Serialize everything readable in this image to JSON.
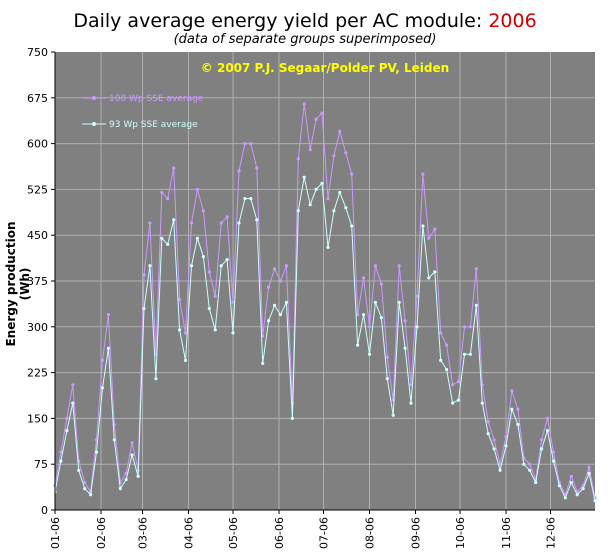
{
  "title": {
    "text": "Daily average energy yield per AC module: ",
    "year": "2006"
  },
  "subtitle": "(data of separate groups superimposed)",
  "copyright": "© 2007 P.J. Segaar/Polder PV, Leiden",
  "ylabel": "Energy production (Wh)",
  "colors": {
    "plot_bg": "#808080",
    "grid": "#b0b0b0",
    "series_108": "#cc99ff",
    "series_93": "#ccffff",
    "copyright": "#ffff00",
    "title_year": "#cc0000"
  },
  "chart_data": {
    "type": "line",
    "title": "Daily average energy yield per AC module: 2006",
    "subtitle": "(data of separate groups superimposed)",
    "xlabel": "",
    "ylabel": "Energy production (Wh)",
    "ylim": [
      0,
      750
    ],
    "yticks": [
      0,
      75,
      150,
      225,
      300,
      375,
      450,
      525,
      600,
      675,
      750
    ],
    "xlim": [
      1,
      365
    ],
    "xticks": [
      {
        "day": 1,
        "label": "01-06"
      },
      {
        "day": 32,
        "label": "02-06"
      },
      {
        "day": 60,
        "label": "03-06"
      },
      {
        "day": 91,
        "label": "04-06"
      },
      {
        "day": 121,
        "label": "05-06"
      },
      {
        "day": 152,
        "label": "06-06"
      },
      {
        "day": 182,
        "label": "07-06"
      },
      {
        "day": 213,
        "label": "08-06"
      },
      {
        "day": 244,
        "label": "09-06"
      },
      {
        "day": 274,
        "label": "10-06"
      },
      {
        "day": 305,
        "label": "11-06"
      },
      {
        "day": 335,
        "label": "12-06"
      }
    ],
    "grid": true,
    "legend_position": "top-left",
    "series": [
      {
        "name": "108 Wp SSE average",
        "color": "#cc99ff",
        "x": [
          1,
          5,
          9,
          13,
          17,
          21,
          25,
          29,
          33,
          37,
          41,
          45,
          49,
          53,
          57,
          61,
          65,
          69,
          73,
          77,
          81,
          85,
          89,
          93,
          97,
          101,
          105,
          109,
          113,
          117,
          121,
          125,
          129,
          133,
          137,
          141,
          145,
          149,
          153,
          157,
          161,
          165,
          169,
          173,
          177,
          181,
          185,
          189,
          193,
          197,
          201,
          205,
          209,
          213,
          217,
          221,
          225,
          229,
          233,
          237,
          241,
          245,
          249,
          253,
          257,
          261,
          265,
          269,
          273,
          277,
          281,
          285,
          289,
          293,
          297,
          301,
          305,
          309,
          313,
          317,
          321,
          325,
          329,
          333,
          337,
          341,
          345,
          349,
          353,
          357,
          361,
          365
        ],
        "values": [
          40,
          95,
          150,
          205,
          80,
          45,
          30,
          115,
          245,
          320,
          140,
          45,
          60,
          110,
          65,
          385,
          470,
          255,
          520,
          510,
          560,
          345,
          290,
          470,
          525,
          490,
          390,
          350,
          470,
          480,
          340,
          555,
          600,
          600,
          560,
          285,
          365,
          395,
          375,
          400,
          175,
          575,
          665,
          590,
          640,
          650,
          510,
          580,
          620,
          585,
          550,
          320,
          380,
          300,
          400,
          370,
          250,
          180,
          400,
          310,
          205,
          350,
          550,
          445,
          460,
          290,
          270,
          205,
          210,
          300,
          300,
          395,
          205,
          145,
          115,
          75,
          120,
          195,
          165,
          85,
          75,
          50,
          115,
          150,
          95,
          45,
          25,
          55,
          30,
          40,
          70,
          20
        ]
      },
      {
        "name": "93 Wp SSE average",
        "color": "#ccffff",
        "x": [
          1,
          5,
          9,
          13,
          17,
          21,
          25,
          29,
          33,
          37,
          41,
          45,
          49,
          53,
          57,
          61,
          65,
          69,
          73,
          77,
          81,
          85,
          89,
          93,
          97,
          101,
          105,
          109,
          113,
          117,
          121,
          125,
          129,
          133,
          137,
          141,
          145,
          149,
          153,
          157,
          161,
          165,
          169,
          173,
          177,
          181,
          185,
          189,
          193,
          197,
          201,
          205,
          209,
          213,
          217,
          221,
          225,
          229,
          233,
          237,
          241,
          245,
          249,
          253,
          257,
          261,
          265,
          269,
          273,
          277,
          281,
          285,
          289,
          293,
          297,
          301,
          305,
          309,
          313,
          317,
          321,
          325,
          329,
          333,
          337,
          341,
          345,
          349,
          353,
          357,
          361,
          365
        ],
        "values": [
          30,
          80,
          130,
          175,
          65,
          35,
          25,
          95,
          200,
          265,
          115,
          35,
          50,
          90,
          55,
          330,
          400,
          215,
          445,
          435,
          475,
          295,
          245,
          400,
          445,
          415,
          330,
          295,
          400,
          410,
          290,
          470,
          510,
          510,
          475,
          240,
          310,
          335,
          320,
          340,
          150,
          490,
          545,
          500,
          525,
          535,
          430,
          490,
          520,
          495,
          465,
          270,
          320,
          255,
          340,
          315,
          215,
          155,
          340,
          265,
          175,
          300,
          465,
          380,
          390,
          245,
          230,
          175,
          180,
          255,
          255,
          335,
          175,
          125,
          100,
          65,
          105,
          165,
          140,
          75,
          65,
          45,
          100,
          130,
          80,
          40,
          20,
          45,
          25,
          35,
          60,
          15
        ]
      }
    ]
  }
}
